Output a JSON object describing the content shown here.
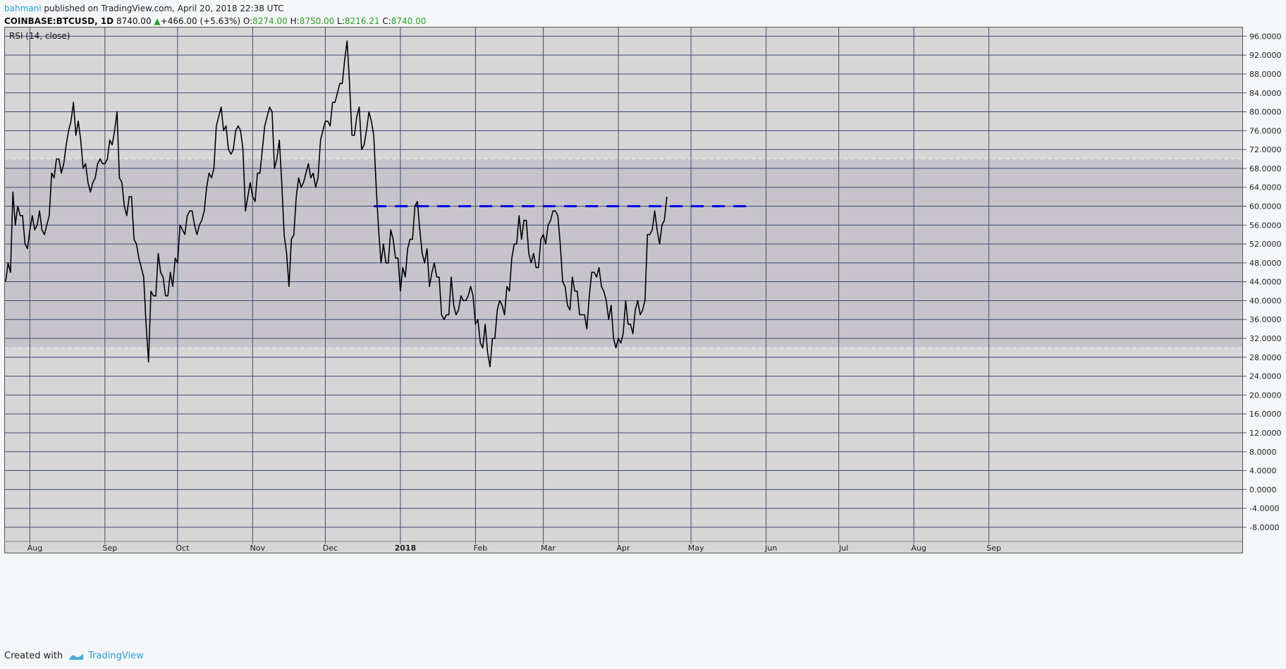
{
  "header": {
    "author": "bahmani",
    "published": " published on TradingView.com, April 20, 2018 22:38 UTC"
  },
  "ticker": {
    "symbol": "COINBASE:BTCUSD, 1D",
    "last": "8740.00",
    "change": "+466.00 (+5.63%)",
    "open_label": "O:",
    "open": "8274.00",
    "high_label": "H:",
    "high": "8750.00",
    "low_label": "L:",
    "low": "8216.21",
    "close_label": "C:",
    "close": "8740.00"
  },
  "footer": {
    "created_with": "Created with",
    "brand": "TradingView"
  },
  "colors": {
    "background": "#d6d6d6",
    "band": "#c6c4ca",
    "grid": "#3f4a73",
    "line": "#000000",
    "dashed": "#0000e6",
    "up": "#2aa02a"
  },
  "chart_data": {
    "type": "line",
    "title": "RSI (14, close)",
    "ylim": [
      -11,
      98
    ],
    "y_ticks": [
      "96.0000",
      "92.0000",
      "88.0000",
      "84.0000",
      "80.0000",
      "76.0000",
      "72.0000",
      "68.0000",
      "64.0000",
      "60.0000",
      "56.0000",
      "52.0000",
      "48.0000",
      "44.0000",
      "40.0000",
      "36.0000",
      "32.0000",
      "28.0000",
      "24.0000",
      "20.0000",
      "16.0000",
      "12.0000",
      "8.0000",
      "4.0000",
      "0.0000",
      "-4.0000",
      "-8.0000"
    ],
    "x_ticks": [
      "Aug",
      "Sep",
      "Oct",
      "Nov",
      "Dec",
      "2018",
      "Feb",
      "Mar",
      "Apr",
      "May",
      "Jun",
      "Jul",
      "Aug",
      "Sep"
    ],
    "band": [
      30,
      70
    ],
    "horizontal_line": {
      "value": 60,
      "from": "2017-12-21",
      "to": "2018-05-27"
    },
    "series": [
      {
        "start_date": "2017-07-22",
        "interval": "1D",
        "values": [
          44,
          48,
          46,
          63,
          56,
          60,
          58,
          58,
          52,
          51,
          55,
          58,
          55,
          56,
          59,
          55,
          54,
          56,
          58,
          67,
          66,
          70,
          70,
          67,
          69,
          73,
          76,
          78,
          82,
          75,
          78,
          74,
          68,
          69,
          65,
          63,
          65,
          66,
          69,
          70,
          69,
          69,
          70,
          74,
          73,
          76,
          80,
          66,
          65,
          60,
          58,
          62,
          62,
          53,
          52,
          49,
          47,
          45,
          35,
          27,
          42,
          41,
          41,
          50,
          46,
          45,
          41,
          41,
          46,
          43,
          49,
          48,
          56,
          55,
          54,
          58,
          59,
          59,
          56,
          54,
          56,
          57,
          59,
          64,
          67,
          66,
          68,
          77,
          79,
          81,
          76,
          77,
          72,
          71,
          72,
          76,
          77,
          76,
          72,
          59,
          62,
          65,
          62,
          61,
          67,
          67,
          72,
          77,
          79,
          81,
          80,
          68,
          70,
          74,
          65,
          54,
          50,
          43,
          53,
          54,
          62,
          66,
          64,
          65,
          67,
          69,
          66,
          67,
          64,
          66,
          74,
          76,
          78,
          78,
          77,
          82,
          82,
          84,
          86,
          86,
          91,
          95,
          86,
          75,
          75,
          79,
          81,
          72,
          73,
          76,
          80,
          78,
          75,
          64,
          55,
          48,
          52,
          48,
          48,
          55,
          53,
          49,
          49,
          42,
          47,
          45,
          51,
          53,
          53,
          60,
          61,
          55,
          50,
          48,
          51,
          43,
          46,
          48,
          45,
          45,
          37,
          36,
          37,
          37,
          45,
          39,
          37,
          38,
          41,
          40,
          40,
          41,
          43,
          41,
          35,
          36,
          31,
          30,
          35,
          29,
          26,
          32,
          32,
          38,
          40,
          39,
          37,
          43,
          42,
          49,
          52,
          52,
          58,
          53,
          57,
          57,
          50,
          48,
          50,
          47,
          47,
          53,
          54,
          52,
          56,
          57,
          59,
          59,
          58,
          52,
          44,
          43,
          39,
          38,
          45,
          42,
          42,
          37,
          37,
          37,
          34,
          41,
          46,
          46,
          45,
          47,
          43,
          42,
          40,
          36,
          39,
          32,
          30,
          32,
          31,
          33,
          40,
          35,
          35,
          33,
          38,
          40,
          37,
          38,
          40,
          54,
          54,
          55,
          59,
          55,
          52,
          56,
          57,
          62
        ]
      }
    ]
  }
}
